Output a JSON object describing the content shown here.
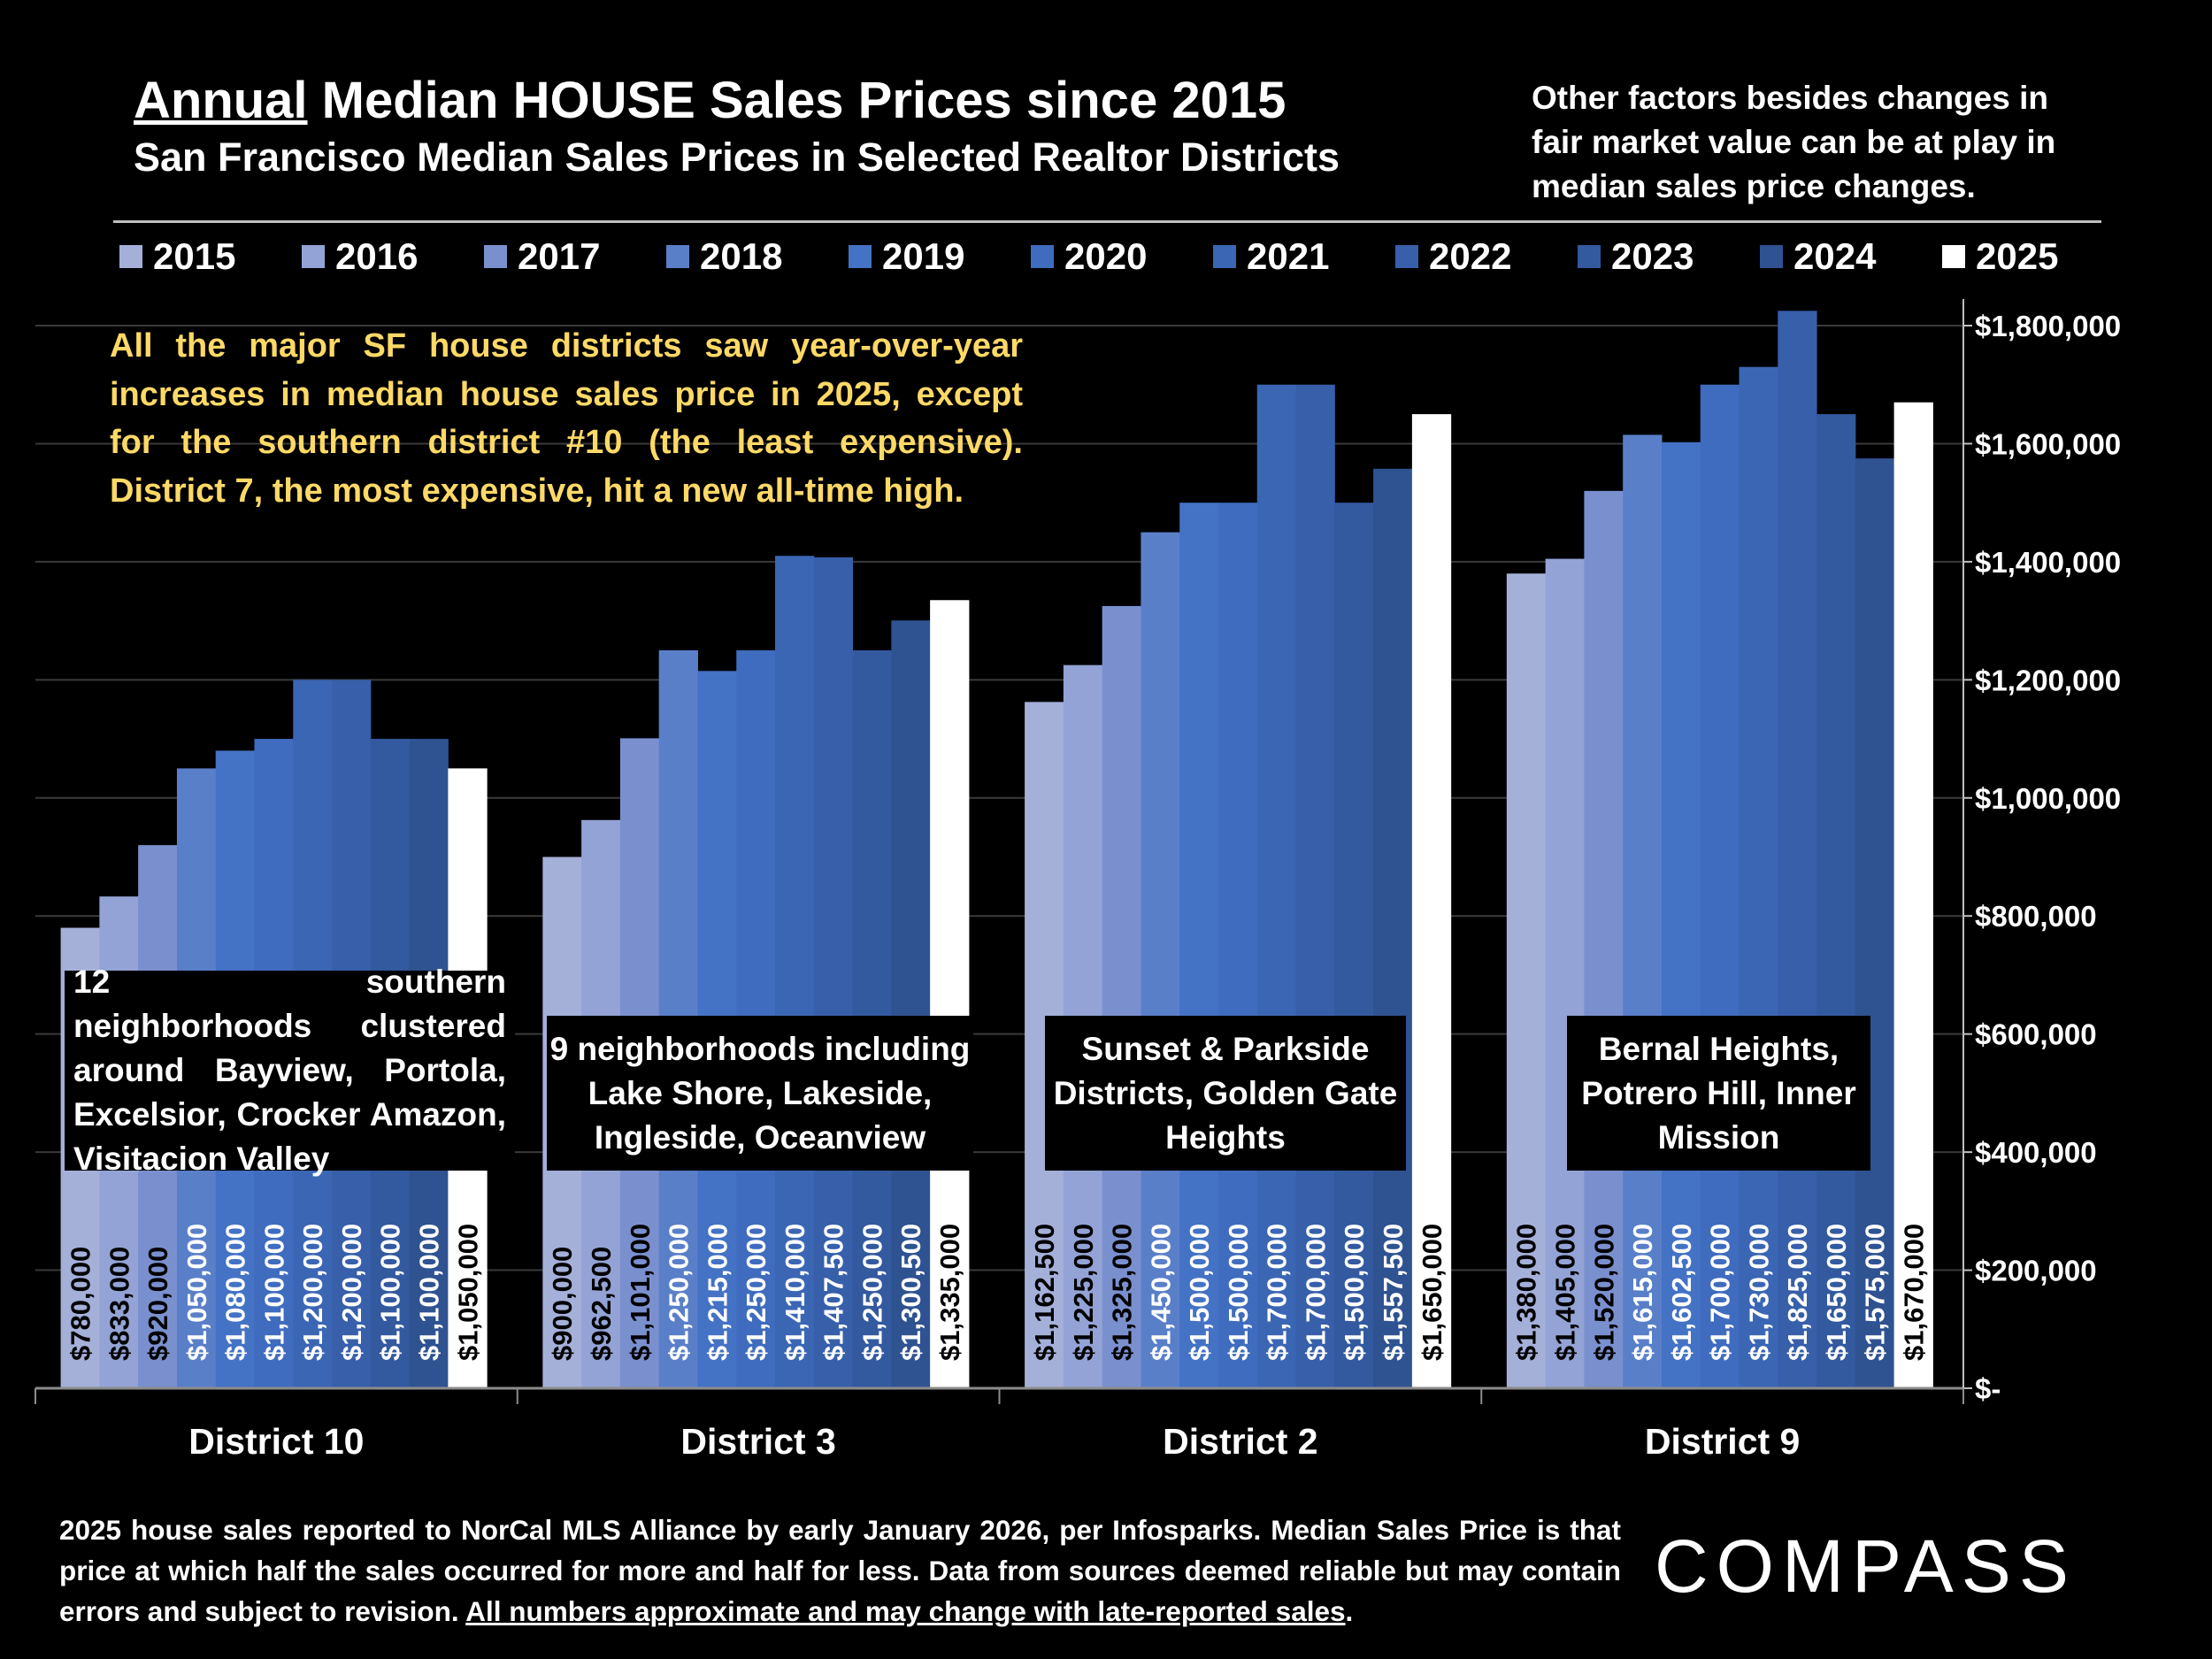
{
  "header": {
    "title_underlined": "Annual",
    "title_rest": " Median HOUSE Sales Prices since 2015",
    "subtitle": "San Francisco Median Sales Prices in Selected Realtor Districts",
    "note": "Other factors besides changes in fair market value can be at play in median sales price changes."
  },
  "annotation": "All the major SF house districts saw year-over-year increases in median house sales price in 2025, except for the southern district #10 (the least expensive). District 7, the most expensive, hit a new all-time high.",
  "chart_data": {
    "type": "bar",
    "categories": [
      "District 10",
      "District 3",
      "District 2",
      "District 9"
    ],
    "series": [
      {
        "name": "2015",
        "color": "#A5B0D9",
        "values": [
          780000,
          900000,
          1162500,
          1380000
        ],
        "labels": [
          "$780,000",
          "$900,000",
          "$1,162,500",
          "$1,380,000"
        ]
      },
      {
        "name": "2016",
        "color": "#93A3D5",
        "values": [
          833000,
          962500,
          1225000,
          1405000
        ],
        "labels": [
          "$833,000",
          "$962,500",
          "$1,225,000",
          "$1,405,000"
        ]
      },
      {
        "name": "2017",
        "color": "#7A90CE",
        "values": [
          920000,
          1101000,
          1325000,
          1520000
        ],
        "labels": [
          "$920,000",
          "$1,101,000",
          "$1,325,000",
          "$1,520,000"
        ]
      },
      {
        "name": "2018",
        "color": "#5A7FC9",
        "values": [
          1050000,
          1250000,
          1450000,
          1615000
        ],
        "labels": [
          "$1,050,000",
          "$1,250,000",
          "$1,450,000",
          "$1,615,000"
        ]
      },
      {
        "name": "2019",
        "color": "#4472C4",
        "values": [
          1080000,
          1215000,
          1500000,
          1602500
        ],
        "labels": [
          "$1,080,000",
          "$1,215,000",
          "$1,500,000",
          "$1,602,500"
        ]
      },
      {
        "name": "2020",
        "color": "#3F6CBE",
        "values": [
          1100000,
          1250000,
          1500000,
          1700000
        ],
        "labels": [
          "$1,100,000",
          "$1,250,000",
          "$1,500,000",
          "$1,700,000"
        ]
      },
      {
        "name": "2021",
        "color": "#3B66B4",
        "values": [
          1200000,
          1410000,
          1700000,
          1730000
        ],
        "labels": [
          "$1,200,000",
          "$1,410,000",
          "$1,700,000",
          "$1,730,000"
        ]
      },
      {
        "name": "2022",
        "color": "#375FAA",
        "values": [
          1200000,
          1407500,
          1700000,
          1825000
        ],
        "labels": [
          "$1,200,000",
          "$1,407,500",
          "$1,700,000",
          "$1,825,000"
        ]
      },
      {
        "name": "2023",
        "color": "#33599F",
        "values": [
          1100000,
          1250000,
          1500000,
          1650000
        ],
        "labels": [
          "$1,100,000",
          "$1,250,000",
          "$1,500,000",
          "$1,650,000"
        ]
      },
      {
        "name": "2024",
        "color": "#2F5291",
        "values": [
          1100000,
          1300500,
          1557500,
          1575000
        ],
        "labels": [
          "$1,100,000",
          "$1,300,500",
          "$1,557,500",
          "$1,575,000"
        ]
      },
      {
        "name": "2025",
        "color": "#FFFFFF",
        "values": [
          1050000,
          1335000,
          1650000,
          1670000
        ],
        "labels": [
          "$1,050,000",
          "$1,335,000",
          "$1,650,000",
          "$1,670,000"
        ]
      }
    ],
    "label_dark_series": [
      "2015",
      "2016",
      "2017",
      "2025"
    ],
    "ylim": [
      0,
      1800000
    ],
    "yticks": [
      0,
      200000,
      400000,
      600000,
      800000,
      1000000,
      1200000,
      1400000,
      1600000,
      1800000
    ],
    "ytick_labels": [
      "$-",
      "$200,000",
      "$400,000",
      "$600,000",
      "$800,000",
      "$1,000,000",
      "$1,200,000",
      "$1,400,000",
      "$1,600,000",
      "$1,800,000"
    ],
    "y_axis_position": "right",
    "legend_position": "top",
    "grid": true
  },
  "district_notes": [
    "12 southern neighborhoods clustered around Bayview, Portola, Excelsior, Crocker Amazon, Visitacion Valley",
    "9 neighborhoods including Lake Shore, Lakeside, Ingleside, Oceanview",
    "Sunset & Parkside Districts, Golden Gate Heights",
    "Bernal Heights, Potrero Hill, Inner Mission"
  ],
  "footer": {
    "text": "2025 house sales reported to NorCal MLS Alliance by early January 2026, per Infosparks. Median Sales Price is that price at which half the sales occurred for more and half for less. Data from sources deemed reliable but may contain errors and subject to revision. ",
    "underlined": "All numbers approximate and may change with late-reported sales",
    "end": "."
  },
  "logo": "COMPASS"
}
